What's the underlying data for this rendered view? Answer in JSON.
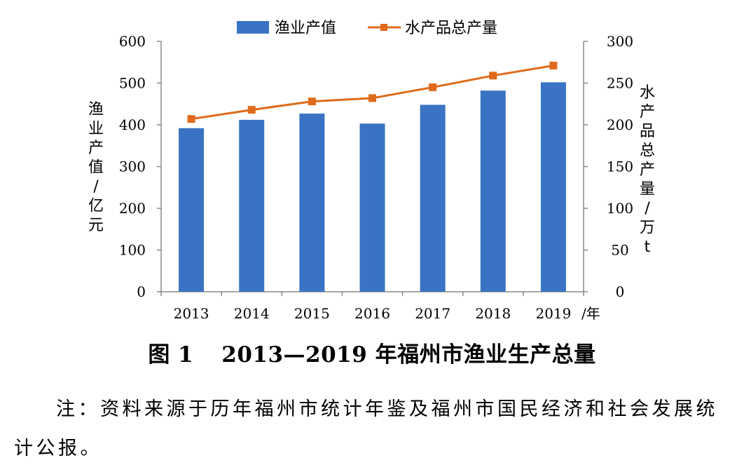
{
  "chart_data": {
    "type": "bar",
    "categories": [
      "2013",
      "2014",
      "2015",
      "2016",
      "2017",
      "2018",
      "2019"
    ],
    "x_unit": "/年",
    "series": [
      {
        "name": "渔业产值",
        "kind": "bar",
        "axis": "left",
        "color": "#3A73C4",
        "values": [
          392,
          412,
          427,
          403,
          448,
          482,
          502
        ]
      },
      {
        "name": "水产品总产量",
        "kind": "line",
        "axis": "right",
        "color": "#E06A1B",
        "values": [
          207,
          218,
          228,
          232,
          245,
          259,
          271
        ]
      }
    ],
    "y_left": {
      "label": "渔业产值/亿元",
      "ylim": [
        0,
        600
      ],
      "ticks": [
        0,
        100,
        200,
        300,
        400,
        500,
        600
      ]
    },
    "y_right": {
      "label": "水产品总产量/万t",
      "ylim": [
        0,
        300
      ],
      "ticks": [
        0,
        50,
        100,
        150,
        200,
        250,
        300
      ]
    },
    "legend_position": "top-center",
    "grid": false
  },
  "caption": {
    "fig": "图 1",
    "title": "2013—2019 年福州市渔业生产总量"
  },
  "note": "注：资料来源于历年福州市统计年鉴及福州市国民经济和社会发展统计公报。"
}
